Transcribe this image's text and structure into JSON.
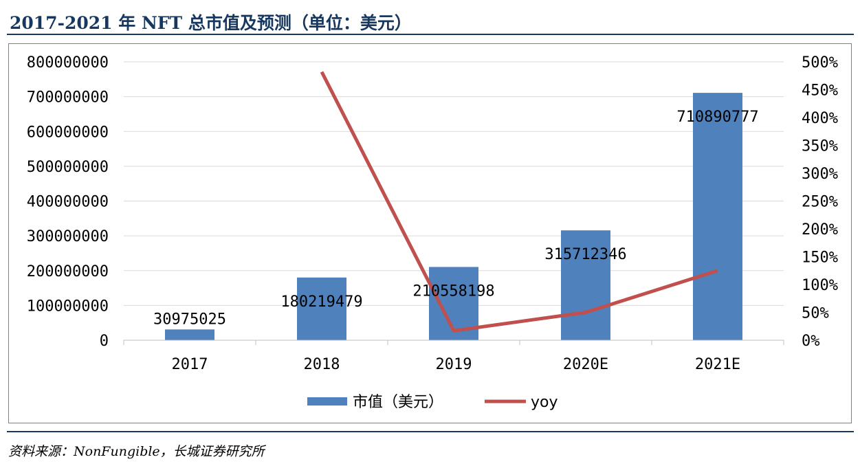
{
  "title": "2017-2021 年 NFT 总市值及预测（单位：美元）",
  "source": "资料来源：NonFungible，长城证券研究所",
  "colors": {
    "bar": "#4f81bd",
    "line": "#c0504d",
    "title": "#17375e",
    "grid": "#d9d9d9"
  },
  "chart_data": {
    "type": "bar",
    "categories": [
      "2017",
      "2018",
      "2019",
      "2020E",
      "2021E"
    ],
    "series": [
      {
        "name": "市值（美元）",
        "type": "bar",
        "axis": "left",
        "values": [
          30975025,
          180219479,
          210558198,
          315712346,
          710890777
        ]
      },
      {
        "name": "yoy",
        "type": "line",
        "axis": "right",
        "values": [
          null,
          4.82,
          0.17,
          0.5,
          1.25
        ]
      }
    ],
    "data_labels": [
      "30975025",
      "180219479",
      "210558198",
      "315712346",
      "710890777"
    ],
    "y_left": {
      "min": 0,
      "max": 800000000,
      "step": 100000000,
      "tick_labels": [
        "0",
        "100000000",
        "200000000",
        "300000000",
        "400000000",
        "500000000",
        "600000000",
        "700000000",
        "800000000"
      ]
    },
    "y_right": {
      "min": 0,
      "max": 5,
      "step": 0.5,
      "tick_labels": [
        "0%",
        "50%",
        "100%",
        "150%",
        "200%",
        "250%",
        "300%",
        "350%",
        "400%",
        "450%",
        "500%"
      ]
    },
    "grid": true,
    "legend": "bottom"
  }
}
